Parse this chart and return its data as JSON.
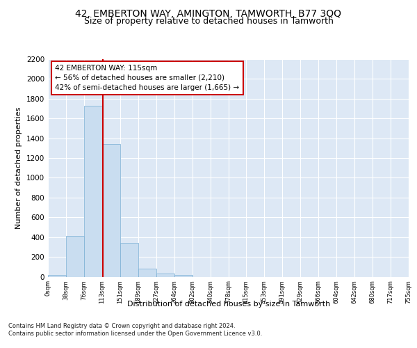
{
  "title": "42, EMBERTON WAY, AMINGTON, TAMWORTH, B77 3QQ",
  "subtitle": "Size of property relative to detached houses in Tamworth",
  "xlabel": "Distribution of detached houses by size in Tamworth",
  "ylabel": "Number of detached properties",
  "annotation_title": "42 EMBERTON WAY: 115sqm",
  "annotation_line1": "← 56% of detached houses are smaller (2,210)",
  "annotation_line2": "42% of semi-detached houses are larger (1,665) →",
  "footer_line1": "Contains HM Land Registry data © Crown copyright and database right 2024.",
  "footer_line2": "Contains public sector information licensed under the Open Government Licence v3.0.",
  "bin_labels": [
    "0sqm",
    "38sqm",
    "76sqm",
    "113sqm",
    "151sqm",
    "189sqm",
    "227sqm",
    "264sqm",
    "302sqm",
    "340sqm",
    "378sqm",
    "415sqm",
    "453sqm",
    "491sqm",
    "529sqm",
    "566sqm",
    "604sqm",
    "642sqm",
    "680sqm",
    "717sqm",
    "755sqm"
  ],
  "bar_values": [
    15,
    410,
    1730,
    1340,
    340,
    80,
    30,
    18,
    0,
    0,
    0,
    0,
    0,
    0,
    0,
    0,
    0,
    0,
    0,
    0
  ],
  "bar_color": "#c9ddf0",
  "bar_edge_color": "#7aafd4",
  "ylim": [
    0,
    2200
  ],
  "yticks": [
    0,
    200,
    400,
    600,
    800,
    1000,
    1200,
    1400,
    1600,
    1800,
    2000,
    2200
  ],
  "plot_bg_color": "#dde8f5",
  "grid_color": "#ffffff",
  "annotation_box_color": "#ffffff",
  "annotation_box_edge": "#cc0000",
  "marker_line_color": "#cc0000",
  "title_fontsize": 10,
  "subtitle_fontsize": 9
}
